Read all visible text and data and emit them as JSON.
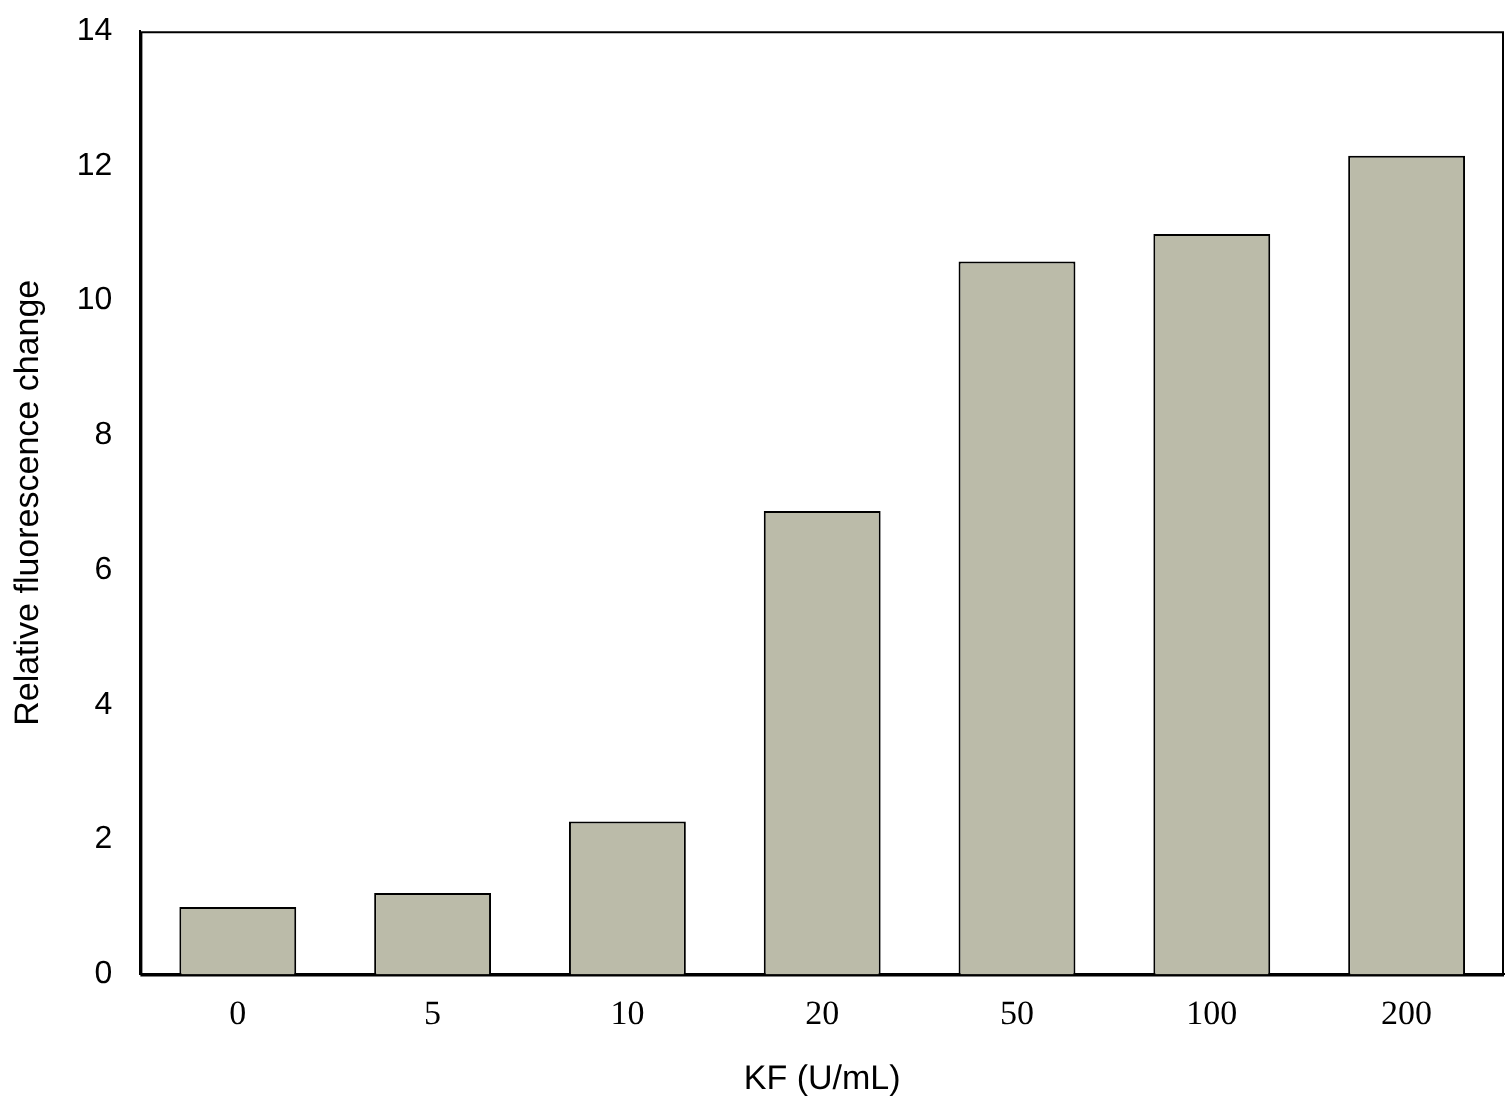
{
  "chart_data": {
    "type": "bar",
    "xlabel": "KF (U/mL)",
    "ylabel": "Relative fluorescence change",
    "categories": [
      "0",
      "5",
      "10",
      "20",
      "50",
      "100",
      "200"
    ],
    "values": [
      1.0,
      1.21,
      2.27,
      6.88,
      10.58,
      10.99,
      12.15
    ],
    "color": "#bbbba9",
    "ylim": [
      0,
      14
    ],
    "yticks": [
      0,
      2,
      4,
      6,
      8,
      10,
      12,
      14
    ],
    "grid": false,
    "legend": false
  }
}
